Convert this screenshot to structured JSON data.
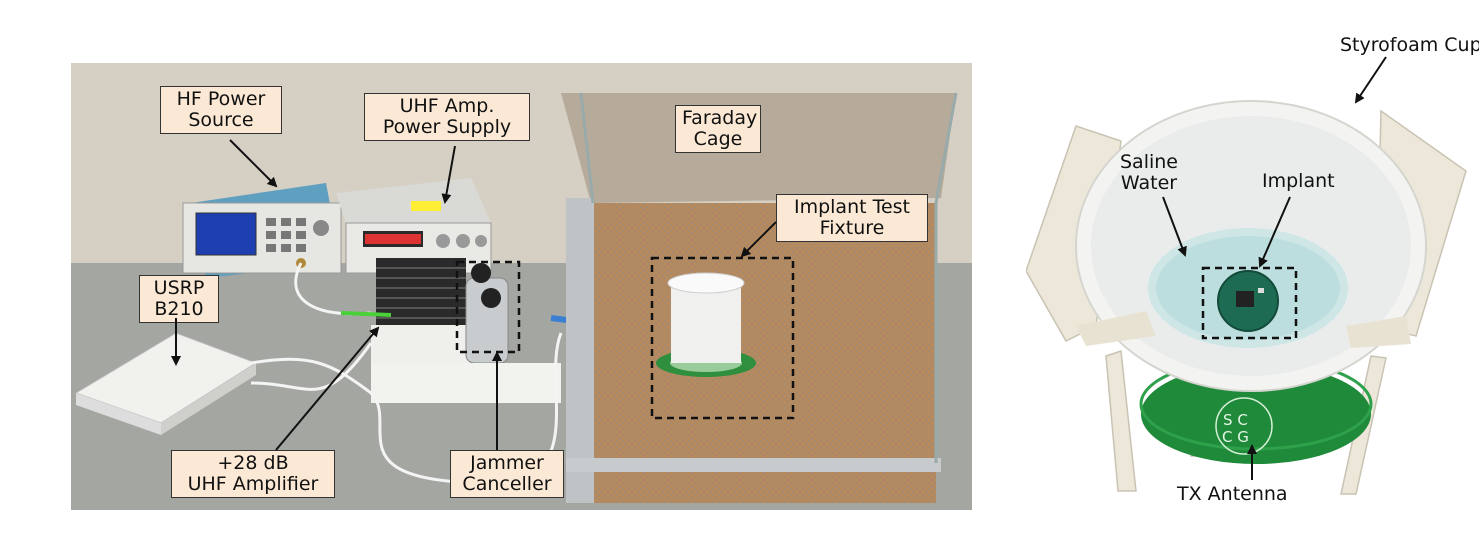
{
  "left_figure": {
    "labels": {
      "hf_power_source": [
        "HF Power",
        "Source"
      ],
      "uhf_amp_power_supply": [
        "UHF Amp.",
        "Power Supply"
      ],
      "faraday_cage": [
        "Faraday",
        "Cage"
      ],
      "implant_test_fixture": [
        "Implant Test",
        "Fixture"
      ],
      "usrp_b210": [
        "USRP",
        "B210"
      ],
      "uhf_amplifier": [
        "+28 dB",
        "UHF Amplifier"
      ],
      "jammer_canceller": [
        "Jammer",
        "Canceller"
      ]
    }
  },
  "right_figure": {
    "labels": {
      "styrofoam_cup": "Styrofoam Cup",
      "saline_water": [
        "Saline",
        "Water"
      ],
      "implant": "Implant",
      "tx_antenna": "TX Antenna",
      "antenna_marking": [
        "S C",
        "C G"
      ]
    }
  }
}
